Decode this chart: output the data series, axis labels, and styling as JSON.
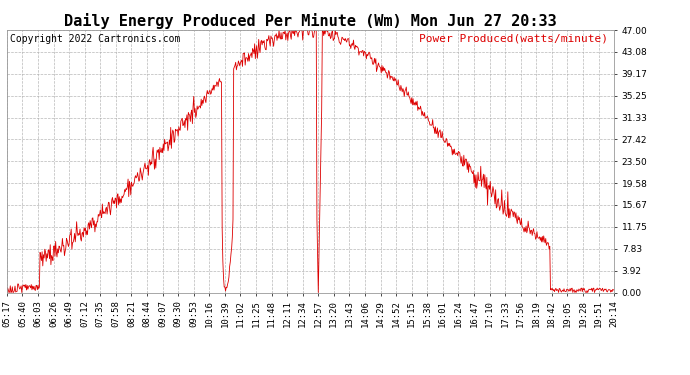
{
  "title": "Daily Energy Produced Per Minute (Wm) Mon Jun 27 20:33",
  "copyright": "Copyright 2022 Cartronics.com",
  "legend_label": "Power Produced(watts/minute)",
  "legend_color": "#dd0000",
  "background_color": "#ffffff",
  "plot_bg_color": "#ffffff",
  "grid_color": "#b0b0b0",
  "line_color": "#dd0000",
  "yticks": [
    0.0,
    3.92,
    7.83,
    11.75,
    15.67,
    19.58,
    23.5,
    27.42,
    31.33,
    35.25,
    39.17,
    43.08,
    47.0
  ],
  "ymax": 47.0,
  "ymin": 0.0,
  "title_fontsize": 11,
  "copyright_fontsize": 7,
  "legend_fontsize": 8,
  "tick_fontsize": 6.5
}
